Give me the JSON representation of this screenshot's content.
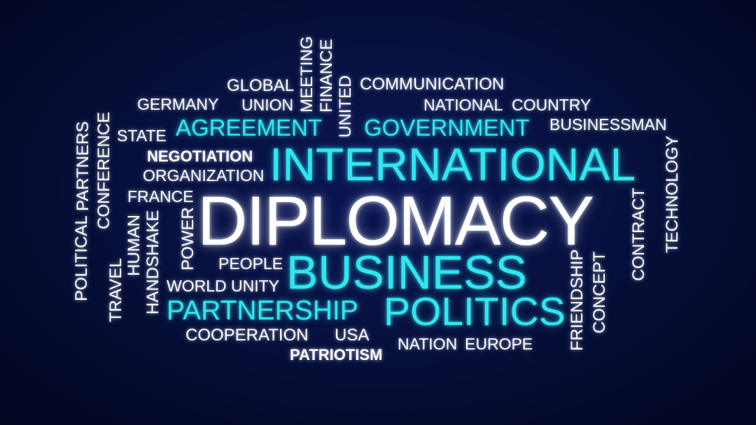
{
  "colors": {
    "background": "#060d3a",
    "accent_cyan": "#2fe6f0",
    "text_white": "#ffffff"
  },
  "words": {
    "diplomacy": "DIPLOMACY",
    "international": "INTERNATIONAL",
    "business": "BUSINESS",
    "politics": "POLITICS",
    "partnership": "PARTNERSHIP",
    "agreement": "AGREEMENT",
    "government": "GOVERNMENT",
    "global": "GLOBAL",
    "union": "UNION",
    "germany": "GERMANY",
    "meeting": "MEETING",
    "finance": "FINANCE",
    "united": "UNITED",
    "communication": "COMMUNICATION",
    "national": "NATIONAL",
    "country": "COUNTRY",
    "businessman": "BUSINESSMAN",
    "state": "STATE",
    "negotiation": "NEGOTIATION",
    "organization": "ORGANIZATION",
    "france": "FRANCE",
    "people": "PEOPLE",
    "world_unity": "WORLD UNITY",
    "cooperation": "COOPERATION",
    "usa": "USA",
    "patriotism": "PATRIOTISM",
    "nation": "NATION",
    "europe": "EUROPE",
    "political": "POLITICAL",
    "partners": "PARTNERS",
    "conference": "CONFERENCE",
    "travel": "TRAVEL",
    "human": "HUMAN",
    "handshake": "HANDSHAKE",
    "power": "POWER",
    "technology": "TECHNOLOGY",
    "contract": "CONTRACT",
    "concept": "CONCEPT",
    "friendship": "FRIENDSHIP"
  }
}
